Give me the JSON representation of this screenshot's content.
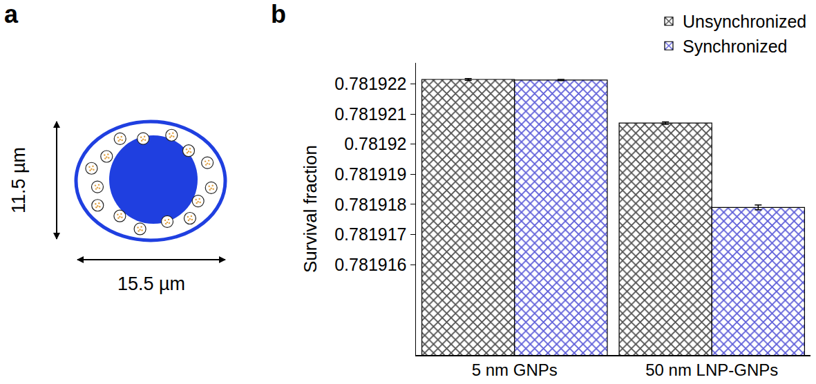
{
  "diagram": {
    "label": "a",
    "height_label": "11.5 µm",
    "width_label": "15.5 µm"
  },
  "chart_data": {
    "type": "bar",
    "panel_label": "b",
    "categories": [
      "5 nm GNPs",
      "50 nm LNP-GNPs"
    ],
    "series": [
      {
        "name": "Unsynchronized",
        "color": "#4d4d4d",
        "values": [
          0.78192215,
          0.7819207
        ],
        "errors": [
          3e-08,
          4e-08
        ]
      },
      {
        "name": "Synchronized",
        "color": "#5a5ad8",
        "values": [
          0.78192213,
          0.7819179
        ],
        "errors": [
          2e-08,
          8e-08
        ]
      }
    ],
    "ylabel": "Survival fraction",
    "ylim": [
      0.781913,
      0.7819227
    ],
    "yticks": [
      0.781916,
      0.781917,
      0.781918,
      0.781919,
      0.78192,
      0.781921,
      0.781922
    ],
    "grid": false,
    "legend": "top right"
  }
}
